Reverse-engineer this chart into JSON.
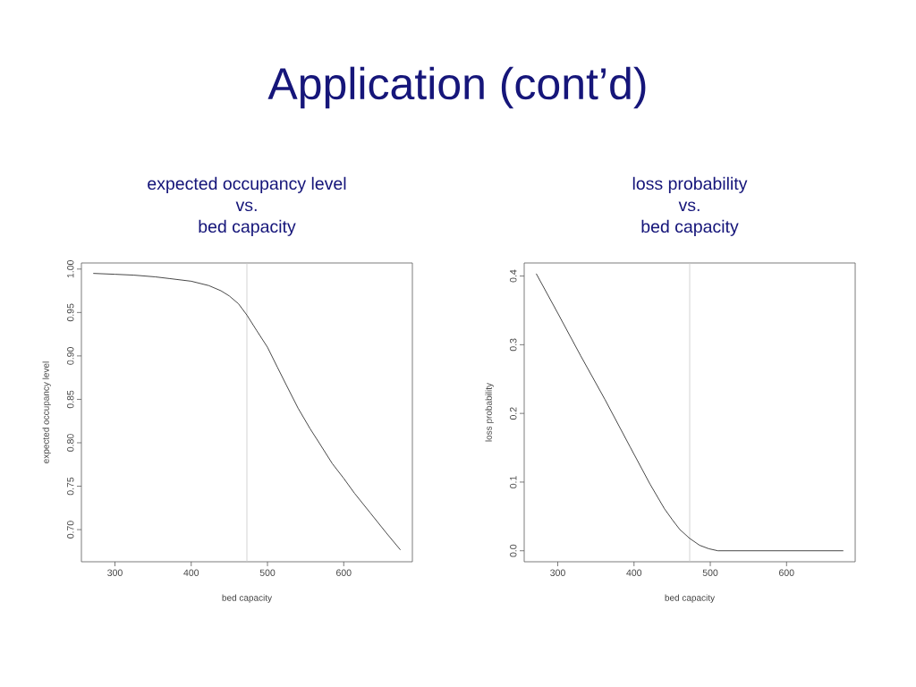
{
  "chart_data": [
    {
      "type": "line",
      "title": "expected occupancy level\nvs.\nbed capacity",
      "xlabel": "bed capacity",
      "ylabel": "expected occupancy level",
      "annotations": [
        "Application (cont’d)"
      ],
      "x": [
        272,
        300,
        325,
        353,
        372,
        400,
        423,
        439,
        450,
        462,
        473,
        486,
        500,
        513,
        525,
        540,
        556,
        567,
        585,
        600,
        614,
        635,
        656,
        674
      ],
      "series": [
        {
          "color": "#333333",
          "values": [
            0.995,
            0.994,
            0.993,
            0.991,
            0.989,
            0.986,
            0.981,
            0.975,
            0.969,
            0.96,
            0.947,
            0.929,
            0.91,
            0.887,
            0.866,
            0.84,
            0.816,
            0.801,
            0.776,
            0.759,
            0.742,
            0.719,
            0.696,
            0.677
          ]
        }
      ],
      "xlim": [
        256,
        690
      ],
      "ylim": [
        0.663,
        1.007
      ],
      "xticks": [
        300,
        400,
        500,
        600
      ],
      "yticks": [
        {
          "value": 0.7,
          "label": "0.70"
        },
        0.75,
        {
          "value": 0.8,
          "label": "0.80"
        },
        0.85,
        {
          "value": 0.9,
          "label": "0.90"
        },
        0.95,
        {
          "value": 1.0,
          "label": "1.00"
        }
      ],
      "ref_lines": [
        {
          "axis": "x",
          "value": 473,
          "color": "#c8c8c8"
        }
      ]
    },
    {
      "type": "line",
      "title": "loss probability\nvs.\nbed capacity",
      "xlabel": "bed capacity",
      "ylabel": "loss probability",
      "x": [
        272,
        300,
        330,
        362,
        395,
        421,
        440,
        451,
        460,
        473,
        486,
        498,
        510,
        600,
        674
      ],
      "series": [
        {
          "color": "#333333",
          "values": [
            0.403,
            0.346,
            0.284,
            0.22,
            0.151,
            0.097,
            0.061,
            0.044,
            0.031,
            0.018,
            0.008,
            0.003,
            0.0,
            0.0,
            0.0
          ]
        }
      ],
      "xlim": [
        256,
        690
      ],
      "ylim": [
        -0.016,
        0.419
      ],
      "xticks": [
        300,
        400,
        500,
        600
      ],
      "yticks": [
        {
          "value": 0,
          "label": "0.0"
        },
        0.1,
        0.2,
        0.3,
        0.4
      ],
      "ref_lines": [
        {
          "axis": "x",
          "value": 473,
          "color": "#c8c8c8"
        }
      ]
    }
  ]
}
